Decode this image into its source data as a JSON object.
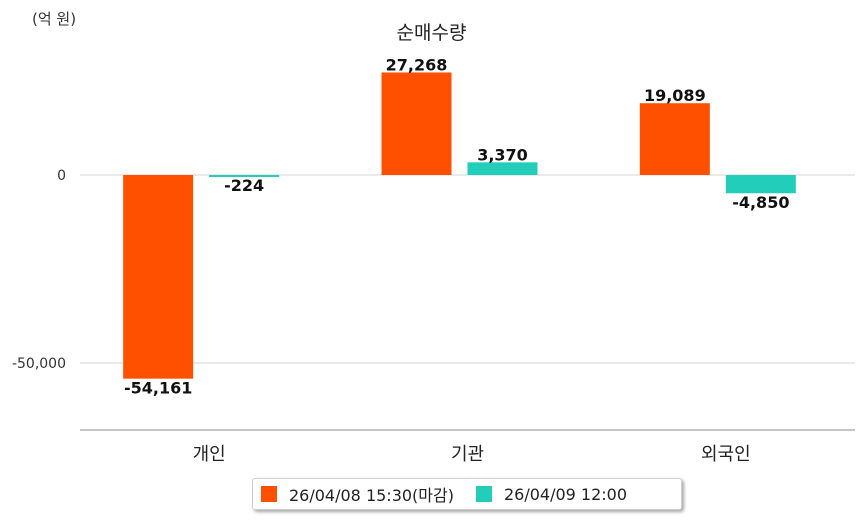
{
  "chart_data": {
    "type": "bar",
    "title": "순매수량",
    "unit_label": "(억 원)",
    "categories": [
      "개인",
      "기관",
      "외국인"
    ],
    "series": [
      {
        "name": "26/04/08 15:30(마감)",
        "color": "#ff5000",
        "values": [
          -54161,
          27268,
          19089
        ],
        "labels": [
          "-54,161",
          "27,268",
          "19,089"
        ]
      },
      {
        "name": "26/04/09 12:00",
        "color": "#22cdb9",
        "values": [
          -224,
          3370,
          -4850
        ],
        "labels": [
          "-224",
          "3,370",
          "-4,850"
        ]
      }
    ],
    "yticks": [
      0,
      -50000
    ],
    "ytick_labels": [
      "0",
      "-50,000"
    ],
    "ylim": [
      -68000,
      37000
    ],
    "grid": true,
    "legend_position": "bottom"
  }
}
